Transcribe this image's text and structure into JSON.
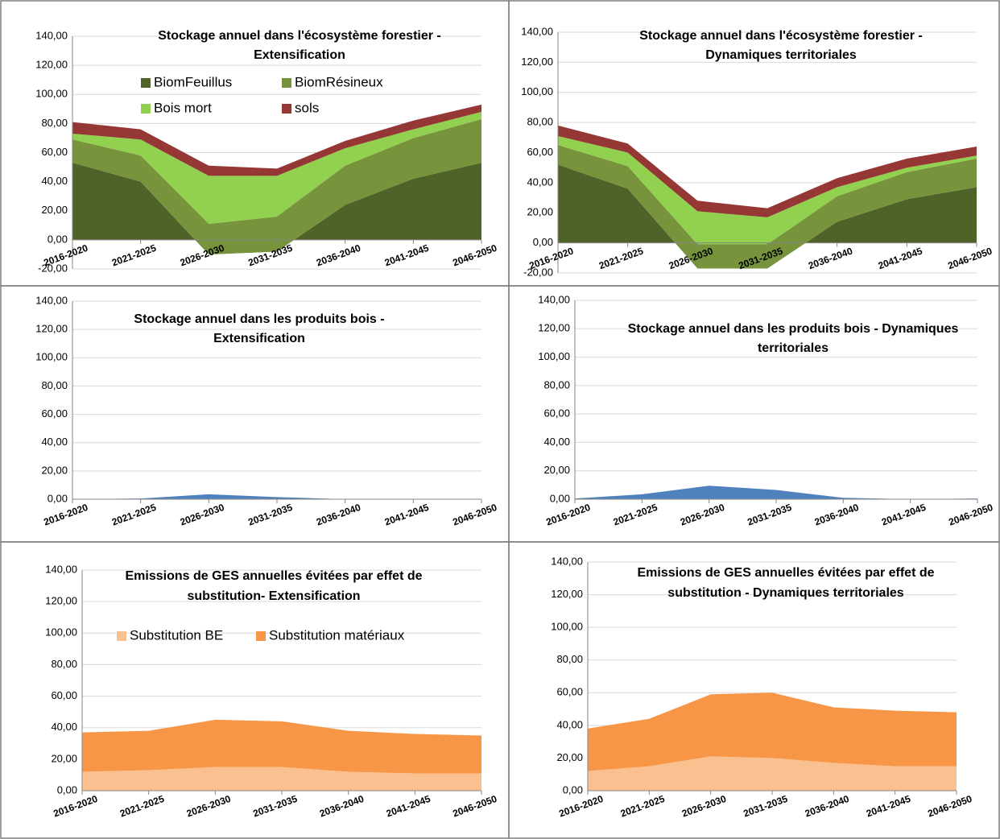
{
  "chart_data": [
    {
      "type": "stacked_area",
      "title": [
        "Stockage annuel dans l'écosystème forestier -",
        "Extensification"
      ],
      "categories": [
        "2016-2020",
        "2021-2025",
        "2026-2030",
        "2031-2035",
        "2036-2040",
        "2041-2045",
        "2046-2050"
      ],
      "series": [
        {
          "name": "BiomFeuillus",
          "color": "#4f6228",
          "values": [
            53,
            40,
            -10,
            -8,
            24,
            42,
            53
          ]
        },
        {
          "name": "BiomRésineux",
          "color": "#77933c",
          "values": [
            16,
            18,
            21,
            24,
            27,
            28,
            30
          ]
        },
        {
          "name": "Bois mort",
          "color": "#92d050",
          "values": [
            4,
            11,
            33,
            28,
            12,
            6,
            5
          ]
        },
        {
          "name": "sols",
          "color": "#953735",
          "values": [
            8,
            7,
            7,
            5,
            5,
            6,
            5
          ]
        }
      ],
      "ylim": [
        -20,
        140
      ],
      "yticks": [
        {
          "value": -20,
          "label": "-20,00"
        },
        {
          "value": 0,
          "label": "0,00"
        },
        {
          "value": 20,
          "label": "20,00"
        },
        {
          "value": 40,
          "label": "40,00"
        },
        {
          "value": 60,
          "label": "60,00"
        },
        {
          "value": 80,
          "label": "80,00"
        },
        {
          "value": 100,
          "label": "100,00"
        },
        {
          "value": 120,
          "label": "120,00"
        },
        {
          "value": 140,
          "label": "140,00"
        }
      ],
      "grid": true,
      "legend": "top"
    },
    {
      "type": "stacked_area",
      "title": [
        "Stockage annuel dans l'écosystème forestier -",
        "Dynamiques territoriales"
      ],
      "categories": [
        "2016-2020",
        "2021-2025",
        "2026-2030",
        "2031-2035",
        "2036-2040",
        "2041-2045",
        "2046-2050"
      ],
      "series": [
        {
          "color": "#4f6228",
          "values": [
            52,
            36,
            -17,
            -17,
            14,
            29,
            37
          ]
        },
        {
          "color": "#77933c",
          "values": [
            13,
            15,
            16,
            16,
            17,
            18,
            19
          ]
        },
        {
          "color": "#92d050",
          "values": [
            6,
            9,
            22,
            18,
            6,
            3,
            2
          ]
        },
        {
          "color": "#953735",
          "values": [
            7,
            6,
            7,
            6,
            6,
            6,
            6
          ]
        }
      ],
      "ylim": [
        -20,
        140
      ],
      "yticks": [
        {
          "value": -20,
          "label": "-20,00"
        },
        {
          "value": 0,
          "label": "0,00"
        },
        {
          "value": 20,
          "label": "20,00"
        },
        {
          "value": 40,
          "label": "40,00"
        },
        {
          "value": 60,
          "label": "60,00"
        },
        {
          "value": 80,
          "label": "80,00"
        },
        {
          "value": 100,
          "label": "100,00"
        },
        {
          "value": 120,
          "label": "120,00"
        },
        {
          "value": 140,
          "label": "140,00"
        }
      ],
      "grid": true
    },
    {
      "type": "stacked_area",
      "title": [
        "Stockage annuel dans les produits bois -",
        "Extensification"
      ],
      "categories": [
        "2016-2020",
        "2021-2025",
        "2026-2030",
        "2031-2035",
        "2036-2040",
        "2041-2045",
        "2046-2050"
      ],
      "series": [
        {
          "color": "#4f81bd",
          "values": [
            0,
            0.5,
            3.5,
            1.5,
            0,
            0,
            0
          ]
        }
      ],
      "ylim": [
        0,
        140
      ],
      "yticks": [
        {
          "value": 0,
          "label": "0,00"
        },
        {
          "value": 20,
          "label": "20,00"
        },
        {
          "value": 40,
          "label": "40,00"
        },
        {
          "value": 60,
          "label": "60,00"
        },
        {
          "value": 80,
          "label": "80,00"
        },
        {
          "value": 100,
          "label": "100,00"
        },
        {
          "value": 120,
          "label": "120,00"
        },
        {
          "value": 140,
          "label": "140,00"
        }
      ],
      "grid": true
    },
    {
      "type": "stacked_area",
      "title": [
        "Stockage annuel dans les produits bois - Dynamiques",
        "territoriales"
      ],
      "categories": [
        "2016-2020",
        "2021-2025",
        "2026-2030",
        "2031-2035",
        "2036-2040",
        "2041-2045",
        "2046-2050"
      ],
      "series": [
        {
          "color": "#4f81bd",
          "values": [
            0.5,
            3.5,
            9.5,
            6.5,
            1,
            0,
            0.5
          ]
        }
      ],
      "ylim": [
        0,
        140
      ],
      "yticks": [
        {
          "value": 0,
          "label": "0,00"
        },
        {
          "value": 20,
          "label": "20,00"
        },
        {
          "value": 40,
          "label": "40,00"
        },
        {
          "value": 60,
          "label": "60,00"
        },
        {
          "value": 80,
          "label": "80,00"
        },
        {
          "value": 100,
          "label": "100,00"
        },
        {
          "value": 120,
          "label": "120,00"
        },
        {
          "value": 140,
          "label": "140,00"
        }
      ],
      "grid": true
    },
    {
      "type": "stacked_area",
      "title": [
        "Emissions de GES annuelles évitées par effet de",
        "substitution- Extensification"
      ],
      "categories": [
        "2016-2020",
        "2021-2025",
        "2026-2030",
        "2031-2035",
        "2036-2040",
        "2041-2045",
        "2046-2050"
      ],
      "series": [
        {
          "name": "Substitution BE",
          "color": "#fac090",
          "values": [
            12,
            13,
            15,
            15,
            12,
            11,
            11
          ]
        },
        {
          "name": "Substitution matériaux",
          "color": "#f79646",
          "values": [
            25,
            25,
            30,
            29,
            26,
            25,
            24
          ]
        }
      ],
      "ylim": [
        0,
        140
      ],
      "yticks": [
        {
          "value": 0,
          "label": "0,00"
        },
        {
          "value": 20,
          "label": "20,00"
        },
        {
          "value": 40,
          "label": "40,00"
        },
        {
          "value": 60,
          "label": "60,00"
        },
        {
          "value": 80,
          "label": "80,00"
        },
        {
          "value": 100,
          "label": "100,00"
        },
        {
          "value": 120,
          "label": "120,00"
        },
        {
          "value": 140,
          "label": "140,00"
        }
      ],
      "grid": true,
      "legend": "top"
    },
    {
      "type": "stacked_area",
      "title": [
        "Emissions de GES annuelles évitées par effet de",
        "substitution - Dynamiques territoriales"
      ],
      "categories": [
        "2016-2020",
        "2021-2025",
        "2026-2030",
        "2031-2035",
        "2036-2040",
        "2041-2045",
        "2046-2050"
      ],
      "series": [
        {
          "color": "#fac090",
          "values": [
            12,
            15,
            21,
            20,
            17,
            15,
            15
          ]
        },
        {
          "color": "#f79646",
          "values": [
            26,
            29,
            38,
            40,
            34,
            34,
            33
          ]
        }
      ],
      "ylim": [
        0,
        140
      ],
      "yticks": [
        {
          "value": 0,
          "label": "0,00"
        },
        {
          "value": 20,
          "label": "20,00"
        },
        {
          "value": 40,
          "label": "40,00"
        },
        {
          "value": 60,
          "label": "60,00"
        },
        {
          "value": 80,
          "label": "80,00"
        },
        {
          "value": 100,
          "label": "100,00"
        },
        {
          "value": 120,
          "label": "120,00"
        },
        {
          "value": 140,
          "label": "140,00"
        }
      ],
      "grid": true
    }
  ]
}
